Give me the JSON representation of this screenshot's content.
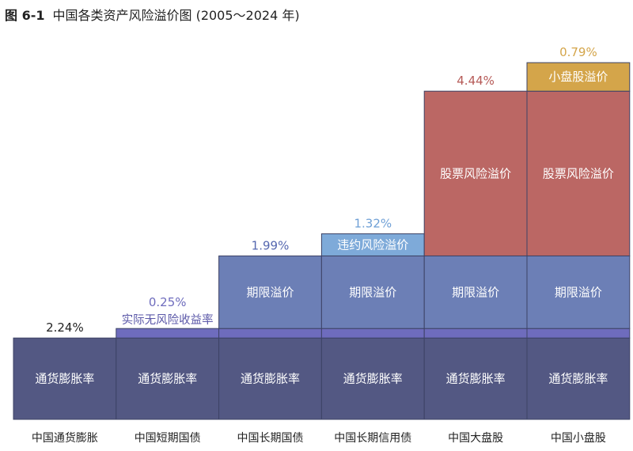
{
  "header": {
    "figure_no": "图 6-1",
    "title": "中国各类资产风险溢价图 (2005～2024 年)"
  },
  "chart_data": {
    "type": "bar",
    "stacked": true,
    "title": "中国各类资产风险溢价图 (2005～2024 年)",
    "categories": [
      "中国通货膨胀",
      "中国短期国债",
      "中国长期国债",
      "中国长期信用债",
      "中国大盘股",
      "中国小盘股"
    ],
    "series": [
      {
        "name": "通货膨胀率",
        "color": "#535883",
        "values": [
          2.24,
          2.24,
          2.24,
          2.24,
          2.24,
          2.24
        ]
      },
      {
        "name": "实际无风险收益率",
        "color": "#6e6cbd",
        "values": [
          0,
          0.25,
          0.25,
          0.25,
          0.25,
          0.25
        ]
      },
      {
        "name": "期限溢价",
        "color": "#6c7fb6",
        "values": [
          0,
          0,
          1.99,
          1.99,
          1.99,
          1.99
        ]
      },
      {
        "name": "违约风险溢价",
        "color": "#7eaad9",
        "values": [
          0,
          0,
          0,
          1.32,
          0,
          0
        ]
      },
      {
        "name": "股票风险溢价",
        "color": "#bb6764",
        "values": [
          0,
          0,
          0,
          0,
          4.44,
          4.44
        ]
      },
      {
        "name": "小盘股溢价",
        "color": "#d4a54a",
        "values": [
          0,
          0,
          0,
          0,
          0,
          0.79
        ]
      }
    ],
    "top_labels": [
      {
        "text": "2.24%",
        "color": "#222222"
      },
      {
        "text": "0.25%",
        "color": "#6e6cbd"
      },
      {
        "text": "1.99%",
        "color": "#5668b0"
      },
      {
        "text": "1.32%",
        "color": "#6fa0d6"
      },
      {
        "text": "4.44%",
        "color": "#b65a57"
      },
      {
        "text": "0.79%",
        "color": "#d4a54a"
      }
    ],
    "xlabel": "",
    "ylabel": "",
    "grid": false,
    "legend": "none"
  }
}
